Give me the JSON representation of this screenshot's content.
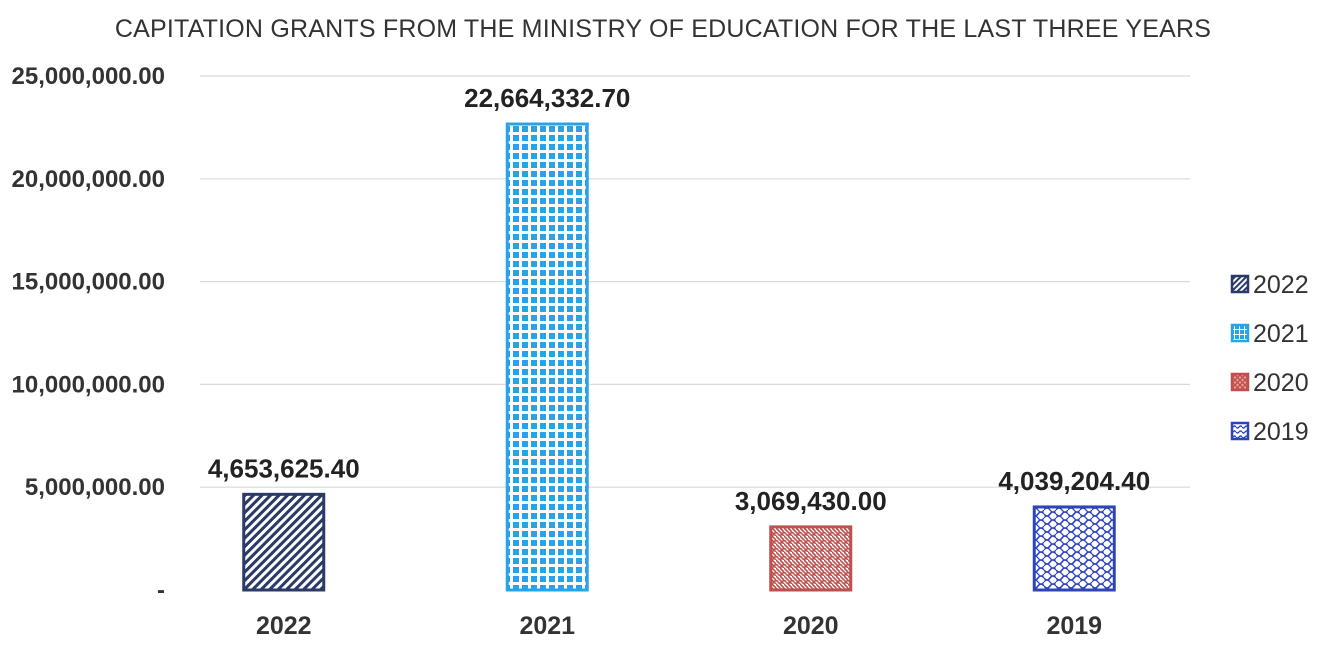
{
  "chart_data": {
    "type": "bar",
    "title": "CAPITATION GRANTS FROM THE MINISTRY OF EDUCATION FOR THE LAST THREE YEARS",
    "xlabel": "",
    "ylabel": "",
    "categories": [
      "2022",
      "2021",
      "2020",
      "2019"
    ],
    "values": [
      4653625.4,
      22664332.7,
      3069430.0,
      4039204.4
    ],
    "data_labels": [
      "4,653,625.40",
      "22,664,332.70",
      "3,069,430.00",
      "4,039,204.40"
    ],
    "ylim": [
      0,
      25000000
    ],
    "yticks": [
      0,
      5000000,
      10000000,
      15000000,
      20000000,
      25000000
    ],
    "ytick_labels": [
      "-",
      "5,000,000.00",
      "10,000,000.00",
      "15,000,000.00",
      "20,000,000.00",
      "25,000,000.00"
    ],
    "grid": true,
    "legend": {
      "placement": "right",
      "entries": [
        "2022",
        "2021",
        "2020",
        "2019"
      ]
    },
    "colors": {
      "2022": "#2b3a67",
      "2021": "#29a3e8",
      "2020": "#c0504d",
      "2019": "#2e45b8"
    },
    "patterns": {
      "2022": "diagonal-stripes",
      "2021": "checker",
      "2020": "weave",
      "2019": "wave"
    }
  }
}
